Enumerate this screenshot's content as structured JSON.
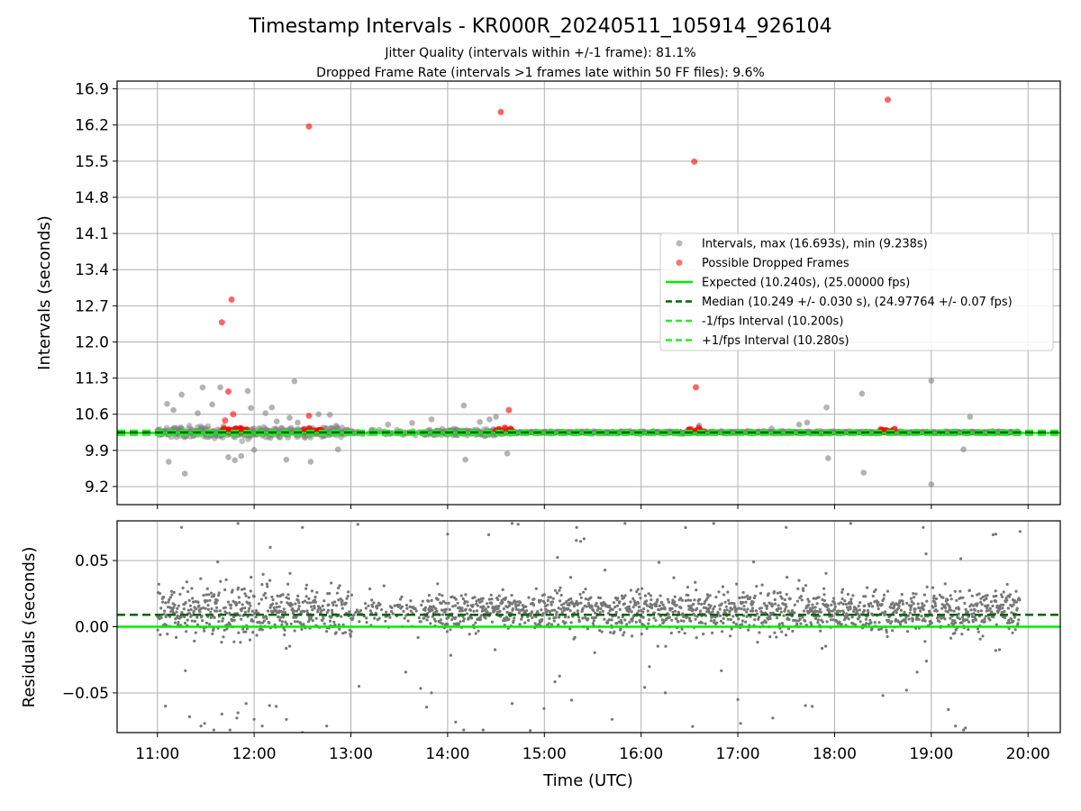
{
  "figure": {
    "title": "Timestamp Intervals - KR000R_20240511_105914_926104",
    "subtitle_1": "Jitter Quality (intervals within +/-1 frame): 81.1%",
    "subtitle_2": "Dropped Frame Rate (intervals >1 frames late within 50 FF files): 9.6%"
  },
  "colors": {
    "intervals": "#808080",
    "dropped": "#ff0000",
    "expected": "#00ee00",
    "median": "#006400",
    "fps_bounds": "#22ee22",
    "grid": "#b0b0b0"
  },
  "chart_data": [
    {
      "type": "scatter",
      "id": "intervals",
      "ylabel": "Intervals (seconds)",
      "ylim": [
        8.85,
        17.05
      ],
      "xlim": [
        "10:35",
        "20:20"
      ],
      "y_ticks": [
        "9.2",
        "9.9",
        "10.6",
        "11.3",
        "12.0",
        "12.7",
        "13.4",
        "14.1",
        "14.8",
        "15.5",
        "16.2",
        "16.9"
      ],
      "grid": true,
      "legend_position": "center-right",
      "legend": [
        "Intervals, max (16.693s), min (9.238s)",
        "Possible Dropped Frames",
        "Expected (10.240s), (25.00000 fps)",
        "Median (10.249 +/- 0.030 s), (24.97764 +/- 0.07 fps)",
        "-1/fps Interval (10.200s)",
        "+1/fps Interval (10.280s)"
      ],
      "lines": {
        "expected": 10.24,
        "median": 10.249,
        "minus_fps": 10.2,
        "plus_fps": 10.28
      },
      "series": [
        {
          "name": "Intervals, max (16.693s), min (9.238s)",
          "points": [
            [
              "11:06",
              10.8
            ],
            [
              "11:07",
              9.68
            ],
            [
              "11:10",
              10.68
            ],
            [
              "11:15",
              10.98
            ],
            [
              "11:17",
              9.45
            ],
            [
              "11:25",
              10.62
            ],
            [
              "11:28",
              11.12
            ],
            [
              "11:34",
              10.79
            ],
            [
              "11:39",
              11.12
            ],
            [
              "11:44",
              9.77
            ],
            [
              "11:48",
              9.71
            ],
            [
              "11:52",
              9.79
            ],
            [
              "11:56",
              11.05
            ],
            [
              "11:58",
              10.72
            ],
            [
              "12:00",
              9.91
            ],
            [
              "12:07",
              10.62
            ],
            [
              "12:11",
              10.73
            ],
            [
              "12:14",
              10.46
            ],
            [
              "12:20",
              9.72
            ],
            [
              "12:22",
              10.53
            ],
            [
              "12:25",
              11.24
            ],
            [
              "12:27",
              10.44
            ],
            [
              "12:35",
              9.68
            ],
            [
              "12:40",
              10.6
            ],
            [
              "12:47",
              10.59
            ],
            [
              "12:52",
              9.92
            ],
            [
              "13:23",
              10.4
            ],
            [
              "13:38",
              10.43
            ],
            [
              "13:50",
              10.5
            ],
            [
              "14:10",
              10.77
            ],
            [
              "14:11",
              9.72
            ],
            [
              "14:20",
              10.45
            ],
            [
              "14:26",
              10.5
            ],
            [
              "14:37",
              9.84
            ],
            [
              "14:30",
              10.55
            ],
            [
              "16:36",
              10.38
            ],
            [
              "17:21",
              10.32
            ],
            [
              "17:38",
              10.4
            ],
            [
              "17:43",
              10.44
            ],
            [
              "17:55",
              10.73
            ],
            [
              "17:56",
              9.75
            ],
            [
              "18:17",
              11.0
            ],
            [
              "18:18",
              9.47
            ],
            [
              "19:00",
              11.25
            ],
            [
              "19:00",
              9.24
            ],
            [
              "19:24",
              10.55
            ],
            [
              "19:20",
              9.92
            ]
          ]
        },
        {
          "name": "Possible Dropped Frames",
          "points": [
            [
              "11:40",
              12.38
            ],
            [
              "11:46",
              12.82
            ],
            [
              "11:44",
              11.04
            ],
            [
              "11:47",
              10.6
            ],
            [
              "11:42",
              10.48
            ],
            [
              "12:34",
              16.17
            ],
            [
              "12:34",
              10.57
            ],
            [
              "14:33",
              16.45
            ],
            [
              "14:38",
              10.68
            ],
            [
              "16:33",
              15.49
            ],
            [
              "16:34",
              11.12
            ],
            [
              "18:33",
              16.69
            ]
          ]
        }
      ]
    },
    {
      "type": "scatter",
      "id": "residuals",
      "xlabel": "Time (UTC)",
      "ylabel": "Residuals (seconds)",
      "ylim": [
        -0.08,
        0.08
      ],
      "xlim": [
        "10:35",
        "20:20"
      ],
      "x_ticks": [
        "11:00",
        "12:00",
        "13:00",
        "14:00",
        "15:00",
        "16:00",
        "17:00",
        "18:00",
        "19:00",
        "20:00"
      ],
      "y_ticks": [
        "−0.05",
        "0.00",
        "0.05"
      ],
      "grid": true,
      "lines": {
        "expected": 0.0,
        "median": 0.009
      },
      "series": [
        {
          "name": "Residuals",
          "points": [
            [
              "11:05",
              -0.06
            ],
            [
              "11:20",
              -0.068
            ],
            [
              "11:27",
              -0.075
            ],
            [
              "11:35",
              -0.078
            ],
            [
              "11:40",
              -0.066
            ],
            [
              "11:45",
              -0.078
            ],
            [
              "11:50",
              -0.065
            ],
            [
              "11:55",
              -0.058
            ],
            [
              "12:00",
              -0.07
            ],
            [
              "12:05",
              -0.075
            ],
            [
              "12:20",
              -0.07
            ],
            [
              "12:30",
              -0.08
            ],
            [
              "12:45",
              -0.075
            ],
            [
              "13:05",
              -0.045
            ],
            [
              "13:50",
              -0.05
            ],
            [
              "14:05",
              -0.072
            ],
            [
              "14:10",
              -0.078
            ],
            [
              "14:22",
              -0.078
            ],
            [
              "14:40",
              -0.058
            ],
            [
              "15:42",
              -0.07
            ],
            [
              "16:15",
              -0.05
            ],
            [
              "17:00",
              -0.055
            ],
            [
              "18:30",
              -0.052
            ],
            [
              "19:15",
              -0.075
            ],
            [
              "19:20",
              -0.078
            ],
            [
              "19:40",
              -0.018
            ],
            [
              "11:15",
              0.075
            ],
            [
              "11:50",
              0.078
            ],
            [
              "12:10",
              0.06
            ],
            [
              "12:30",
              0.075
            ],
            [
              "14:00",
              0.07
            ],
            [
              "14:40",
              0.078
            ],
            [
              "15:20",
              0.075
            ],
            [
              "15:50",
              0.078
            ],
            [
              "16:45",
              0.078
            ],
            [
              "17:30",
              0.075
            ],
            [
              "18:10",
              0.078
            ],
            [
              "18:55",
              0.075
            ],
            [
              "19:40",
              0.07
            ],
            [
              "19:55",
              0.072
            ]
          ]
        }
      ]
    }
  ]
}
